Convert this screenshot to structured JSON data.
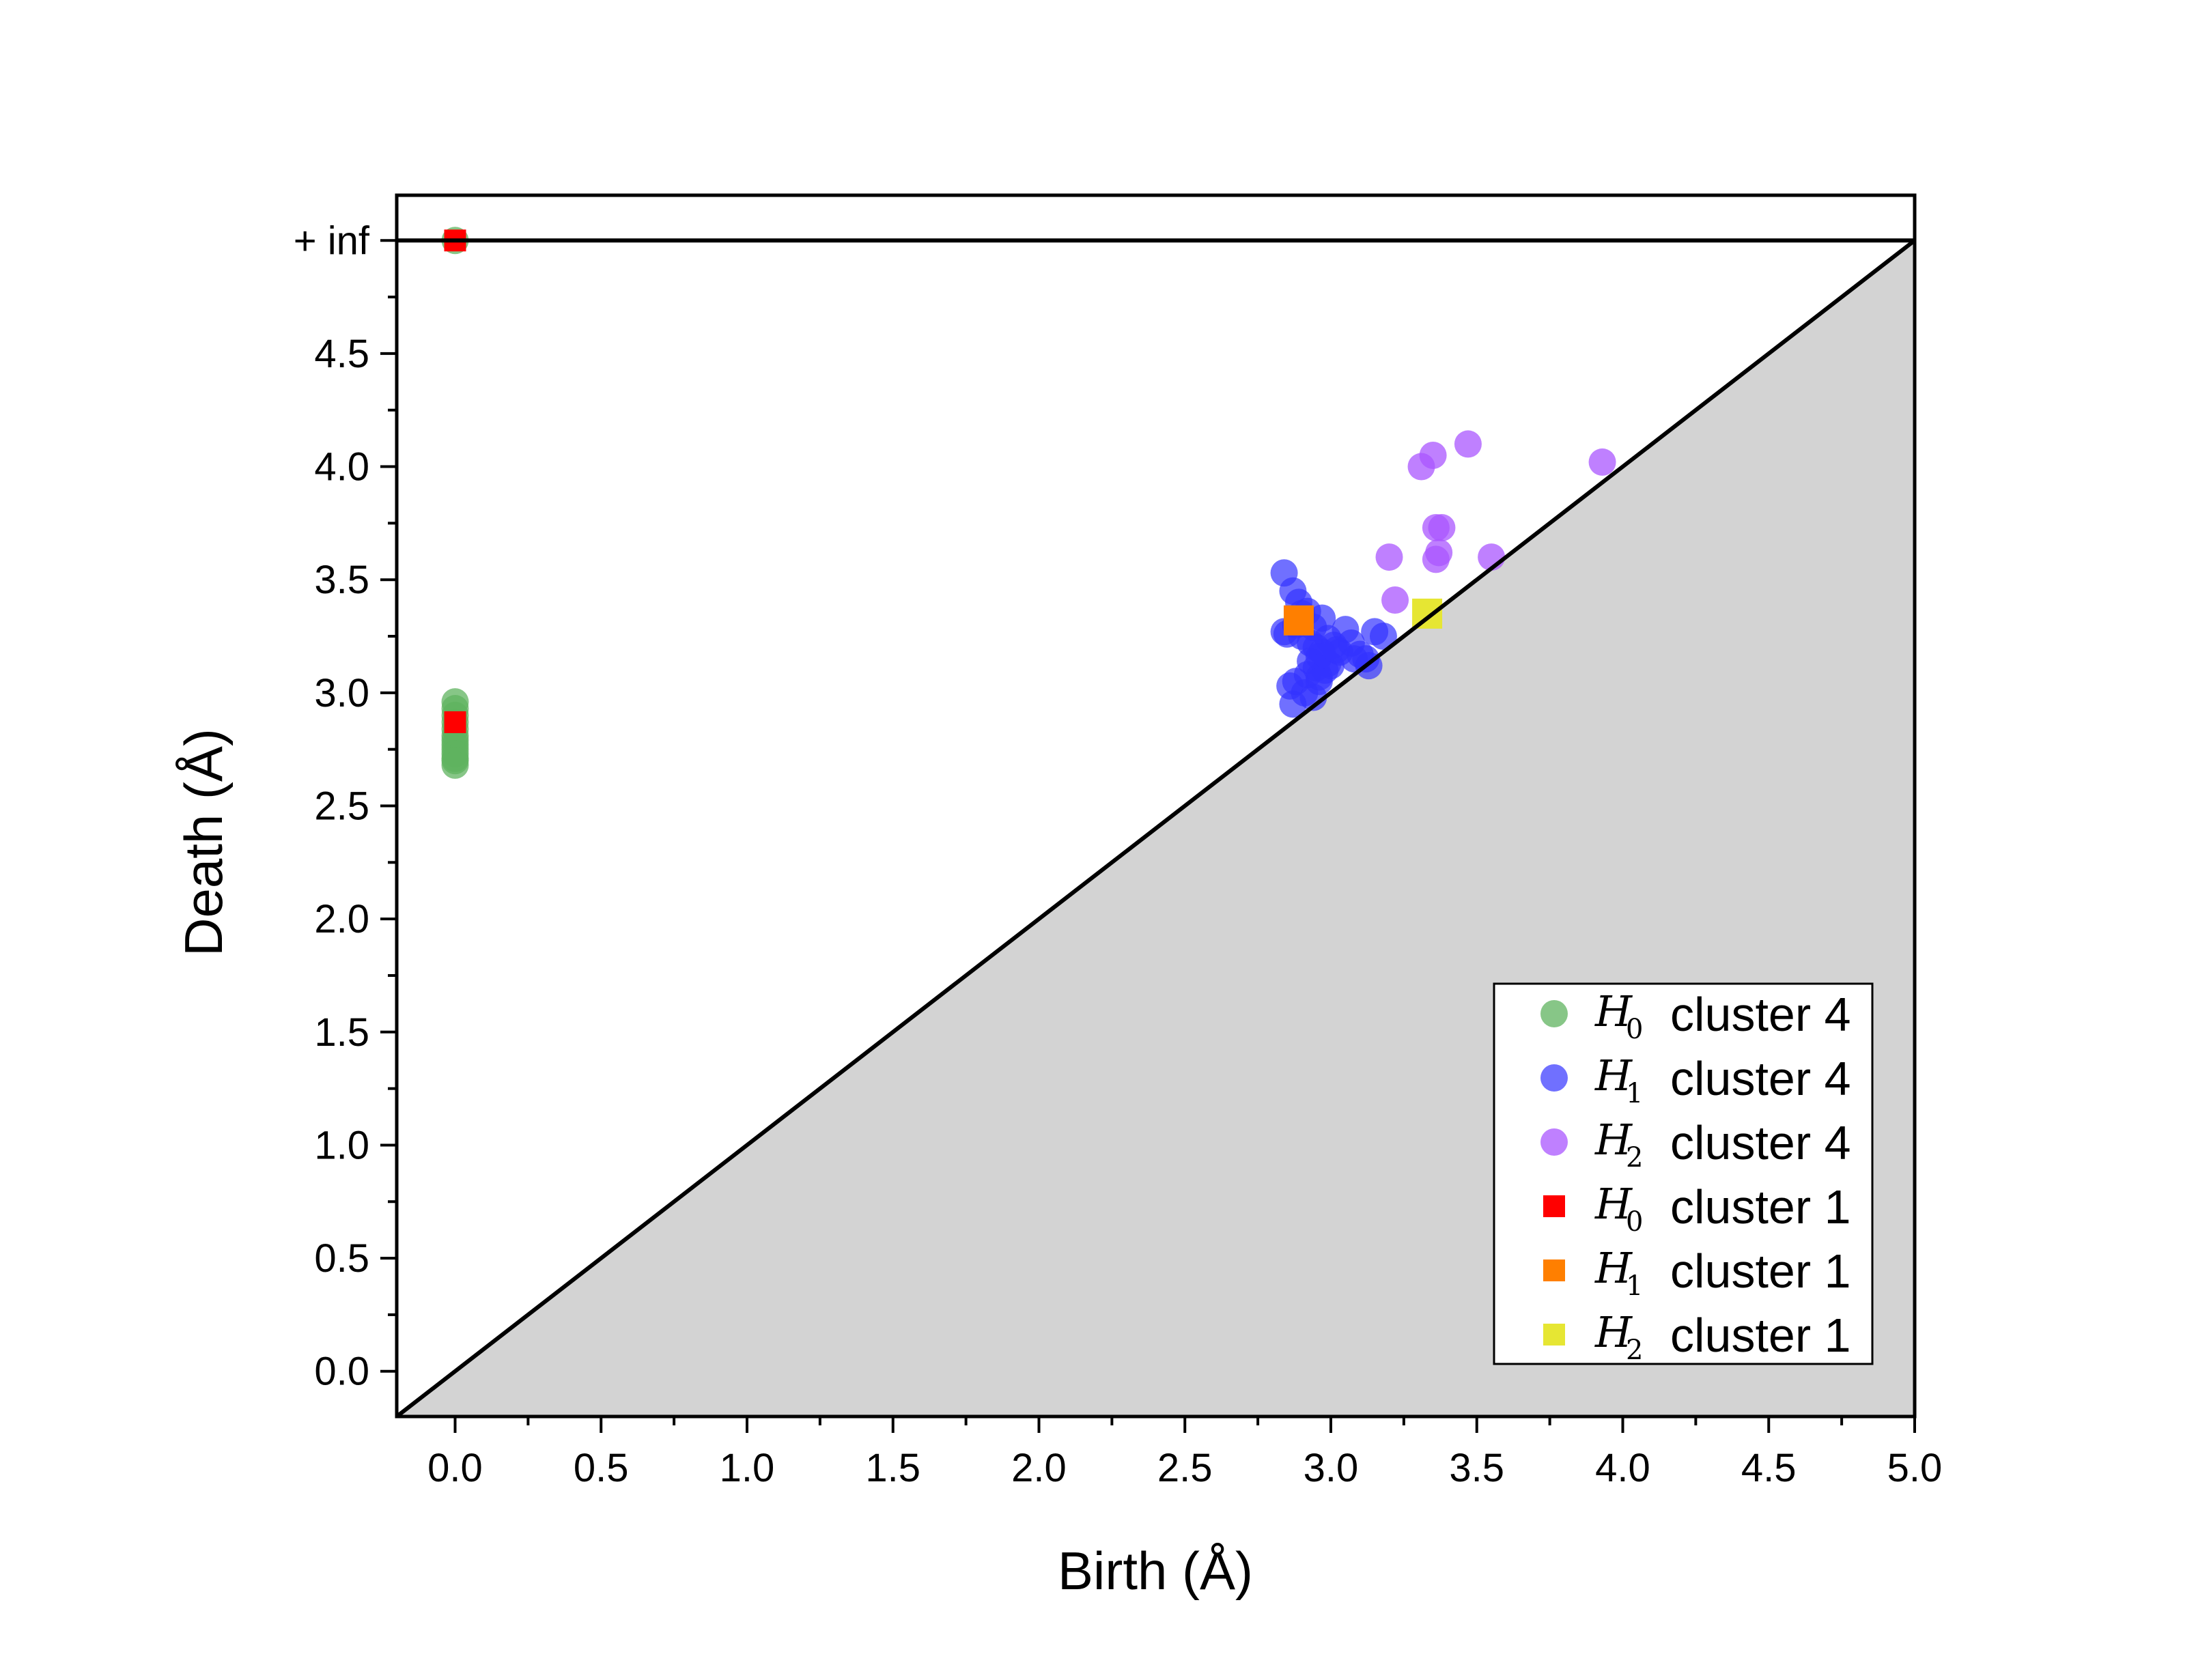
{
  "chart_data": {
    "type": "scatter",
    "xlabel": "Birth (Å)",
    "ylabel": "Death (Å)",
    "xlim": [
      -0.2,
      5.0
    ],
    "ylim": [
      -0.2,
      5.2
    ],
    "x_ticks": [
      "0.0",
      "0.5",
      "1.0",
      "1.5",
      "2.0",
      "2.5",
      "3.0",
      "3.5",
      "4.0",
      "4.5",
      "5.0"
    ],
    "x_tick_values": [
      0,
      0.5,
      1,
      1.5,
      2,
      2.5,
      3,
      3.5,
      4,
      4.5,
      5
    ],
    "y_ticks": [
      "0.0",
      "0.5",
      "1.0",
      "1.5",
      "2.0",
      "2.5",
      "3.0",
      "3.5",
      "4.0",
      "4.5",
      "+ inf"
    ],
    "y_tick_values": [
      0,
      0.5,
      1,
      1.5,
      2,
      2.5,
      3,
      3.5,
      4,
      4.5,
      5
    ],
    "inf_line_y": 5.0,
    "diagonal": true,
    "diagonal_fill": "#d3d3d3",
    "legend_position": "bottom-right",
    "series": [
      {
        "name": "H0 cluster 4",
        "symbol": "H",
        "subscript": "0",
        "label": "cluster 4",
        "marker": "circle",
        "color": "#5fb35f",
        "opacity": 0.75,
        "x": [
          0,
          0,
          0,
          0,
          0,
          0,
          0,
          0,
          0,
          0,
          0,
          0,
          0,
          0
        ],
        "y": [
          5.0,
          2.96,
          2.93,
          2.9,
          2.87,
          2.84,
          2.81,
          2.79,
          2.77,
          2.75,
          2.73,
          2.71,
          2.7,
          2.68
        ]
      },
      {
        "name": "H1 cluster 4",
        "symbol": "H",
        "subscript": "1",
        "label": "cluster 4",
        "marker": "circle",
        "color": "#3333ff",
        "opacity": 0.7,
        "x": [
          2.84,
          2.87,
          2.89,
          2.92,
          2.84,
          2.88,
          2.9,
          2.93,
          2.95,
          2.97,
          2.99,
          3.01,
          3.03,
          3.05,
          3.07,
          3.1,
          3.12,
          3.15,
          3.18,
          2.86,
          2.88,
          2.91,
          2.94,
          2.96,
          2.98,
          3.0,
          2.93,
          2.96,
          2.99,
          2.95,
          2.92,
          2.9,
          2.97,
          3.02,
          2.94,
          2.96,
          2.87,
          2.85,
          3.08,
          3.13
        ],
        "y": [
          3.53,
          3.45,
          3.4,
          3.36,
          3.27,
          3.3,
          3.25,
          3.22,
          3.2,
          3.18,
          3.24,
          3.21,
          3.18,
          3.28,
          3.22,
          3.17,
          3.15,
          3.27,
          3.25,
          3.03,
          3.05,
          3.0,
          2.98,
          3.07,
          3.1,
          3.12,
          3.14,
          3.16,
          3.13,
          3.11,
          3.08,
          3.35,
          3.33,
          3.19,
          3.29,
          3.05,
          2.95,
          3.26,
          3.15,
          3.12
        ]
      },
      {
        "name": "H2 cluster 4",
        "symbol": "H",
        "subscript": "2",
        "label": "cluster 4",
        "marker": "circle",
        "color": "#aa55ff",
        "opacity": 0.75,
        "x": [
          3.47,
          3.35,
          3.31,
          3.93,
          3.36,
          3.38,
          3.2,
          3.55,
          3.36,
          3.37,
          3.22
        ],
        "y": [
          4.1,
          4.05,
          4.0,
          4.02,
          3.73,
          3.73,
          3.6,
          3.6,
          3.59,
          3.62,
          3.41
        ]
      },
      {
        "name": "H0 cluster 1",
        "symbol": "H",
        "subscript": "0",
        "label": "cluster 1",
        "marker": "square",
        "color": "#ff0000",
        "opacity": 1,
        "x": [
          0,
          0
        ],
        "y": [
          5.0,
          2.87
        ]
      },
      {
        "name": "H1 cluster 1",
        "symbol": "H",
        "subscript": "1",
        "label": "cluster 1",
        "marker": "square",
        "color": "#ff7f00",
        "opacity": 1,
        "x": [
          2.89
        ],
        "y": [
          3.32
        ]
      },
      {
        "name": "H2 cluster 1",
        "symbol": "H",
        "subscript": "2",
        "label": "cluster 1",
        "marker": "square",
        "color": "#e6e633",
        "opacity": 1,
        "x": [
          3.33
        ],
        "y": [
          3.35
        ]
      }
    ]
  }
}
